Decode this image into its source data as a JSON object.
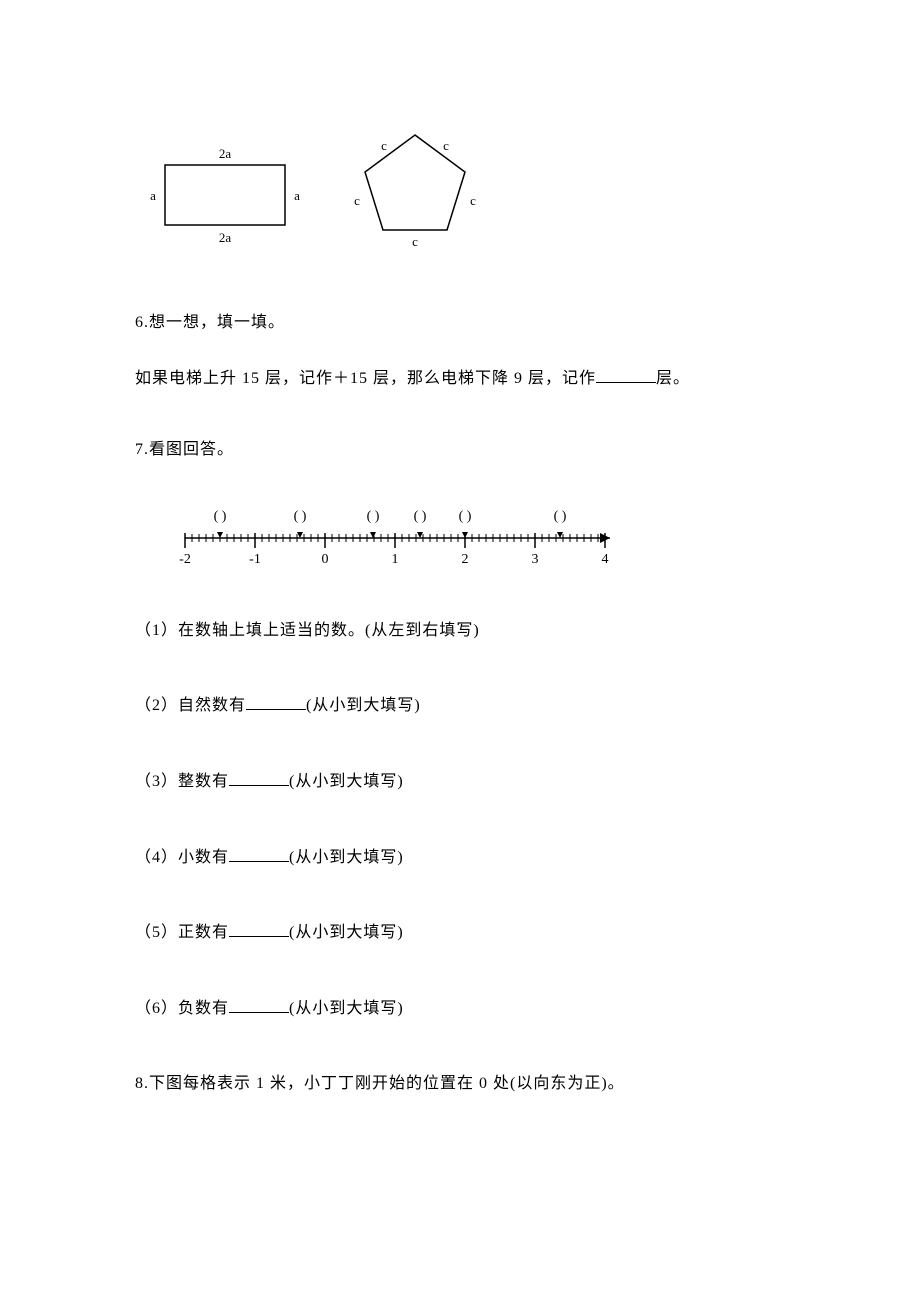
{
  "figures": {
    "rect": {
      "top_label": "2a",
      "bottom_label": "2a",
      "left_label": "a",
      "right_label": "a",
      "stroke": "#000000",
      "fill": "#ffffff",
      "label_fontsize": 13
    },
    "pentagon": {
      "side_label": "c",
      "stroke": "#000000",
      "fill": "#ffffff",
      "label_fontsize": 13
    }
  },
  "q6": {
    "heading": "6.想一想，填一填。",
    "text_before": "如果电梯上升 15 层，记作＋15 层，那么电梯下降 9 层，记作",
    "text_after": "层。"
  },
  "q7": {
    "heading": "7.看图回答。",
    "numberline": {
      "ticks": [
        "-2",
        "-1",
        "0",
        "1",
        "2",
        "3",
        "4"
      ],
      "paren_positions_x": [
        55,
        135,
        208,
        255,
        300,
        395
      ],
      "stroke": "#000000",
      "label_fontsize": 14
    },
    "items": [
      "（1）在数轴上填上适当的数。(从左到右填写)",
      "（2）自然数有",
      "（3）整数有",
      "（4）小数有",
      "（5）正数有",
      "（6）负数有"
    ],
    "suffix": "(从小到大填写)"
  },
  "q8": {
    "text": "8.下图每格表示 1 米，小丁丁刚开始的位置在 0 处(以向东为正)。"
  }
}
